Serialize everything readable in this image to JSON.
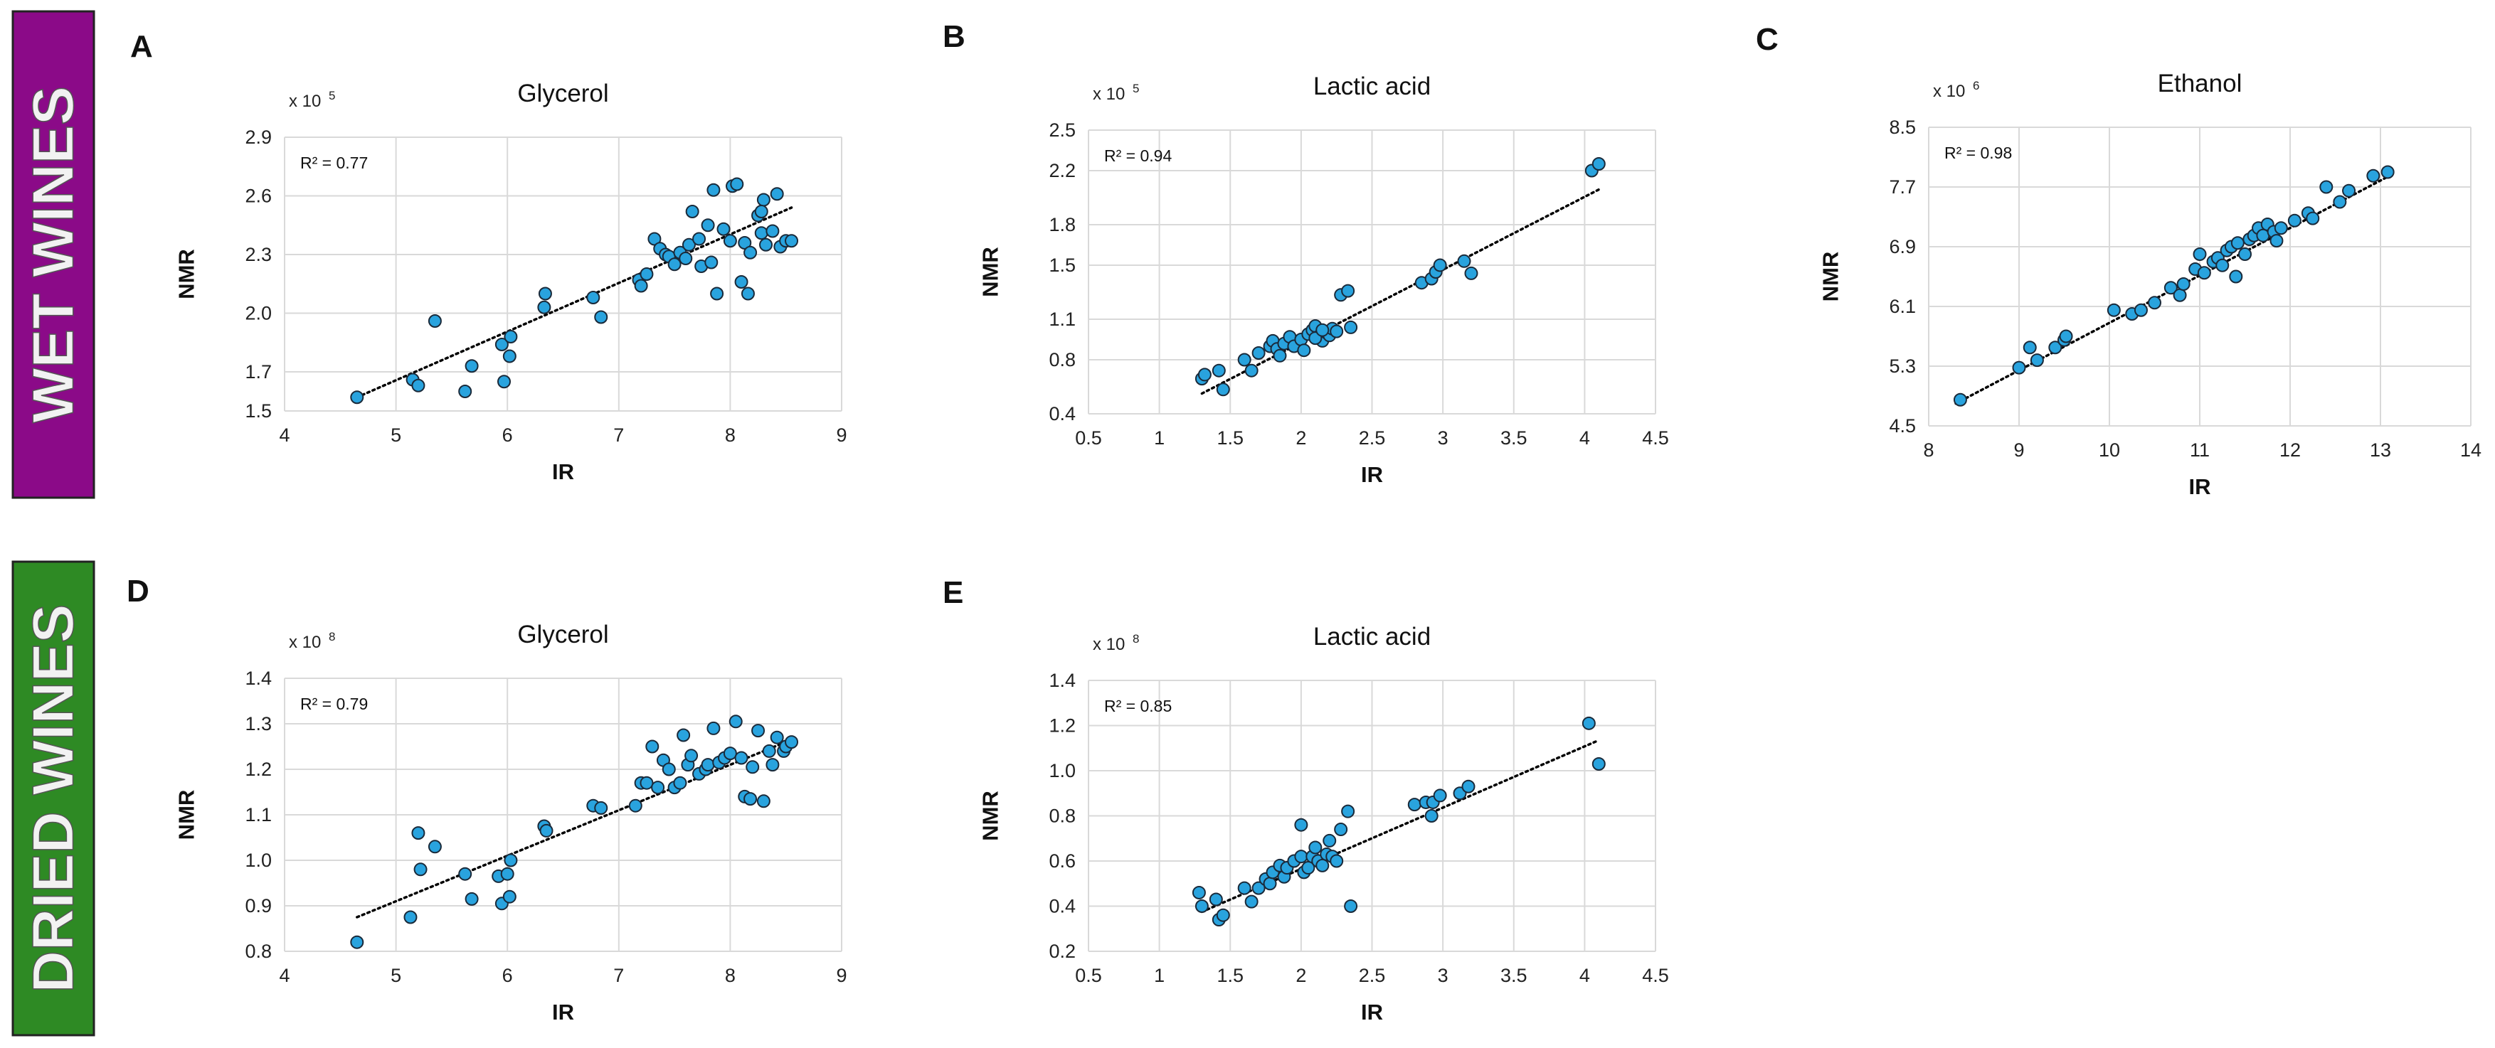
{
  "figure": {
    "bands": [
      {
        "label": "WET WINES",
        "color": "#8b0a88"
      },
      {
        "label": "DRIED WINES",
        "color": "#2e8a24"
      }
    ],
    "colors": {
      "point_fill": "#29a3de",
      "point_stroke": "#1a2a3a",
      "grid": "#d9d9d9",
      "trendline": "#000000",
      "band_text": "#f2f2f2",
      "band_border": "#222222"
    }
  },
  "chart_data": [
    {
      "panel_letter": "A",
      "type": "scatter",
      "title": "Glycerol",
      "xlabel": "IR",
      "ylabel": "NMR",
      "multiplier": "x 10",
      "multiplier_exp": "5",
      "r2_text": "R² = 0.77",
      "xlim": [
        4,
        9
      ],
      "ylim": [
        1.5,
        2.9
      ],
      "xticks": [
        4,
        5,
        6,
        7,
        8,
        9
      ],
      "yticks": [
        1.5,
        1.7,
        2.0,
        2.3,
        2.6,
        2.9
      ],
      "xtick_labels": [
        "4",
        "5",
        "6",
        "7",
        "8",
        "9"
      ],
      "ytick_labels": [
        "1.5",
        "1.7",
        "2.0",
        "2.3",
        "2.6",
        "2.9"
      ],
      "grid": true,
      "trendline": {
        "x": [
          4.65,
          8.55
        ],
        "y": [
          1.57,
          2.54
        ]
      },
      "points": [
        [
          4.65,
          1.57
        ],
        [
          5.15,
          1.66
        ],
        [
          5.2,
          1.63
        ],
        [
          5.35,
          1.96
        ],
        [
          5.62,
          1.6
        ],
        [
          5.68,
          1.73
        ],
        [
          5.95,
          1.84
        ],
        [
          5.97,
          1.65
        ],
        [
          6.02,
          1.78
        ],
        [
          6.03,
          1.88
        ],
        [
          6.33,
          2.03
        ],
        [
          6.34,
          2.1
        ],
        [
          6.77,
          2.08
        ],
        [
          6.84,
          1.98
        ],
        [
          7.18,
          2.17
        ],
        [
          7.2,
          2.14
        ],
        [
          7.25,
          2.2
        ],
        [
          7.32,
          2.38
        ],
        [
          7.37,
          2.33
        ],
        [
          7.42,
          2.3
        ],
        [
          7.45,
          2.29
        ],
        [
          7.5,
          2.25
        ],
        [
          7.55,
          2.31
        ],
        [
          7.6,
          2.28
        ],
        [
          7.63,
          2.35
        ],
        [
          7.66,
          2.52
        ],
        [
          7.72,
          2.38
        ],
        [
          7.74,
          2.24
        ],
        [
          7.8,
          2.45
        ],
        [
          7.83,
          2.26
        ],
        [
          7.85,
          2.63
        ],
        [
          7.88,
          2.1
        ],
        [
          7.94,
          2.43
        ],
        [
          8.0,
          2.37
        ],
        [
          8.02,
          2.65
        ],
        [
          8.06,
          2.66
        ],
        [
          8.1,
          2.16
        ],
        [
          8.13,
          2.36
        ],
        [
          8.16,
          2.1
        ],
        [
          8.18,
          2.31
        ],
        [
          8.25,
          2.5
        ],
        [
          8.28,
          2.41
        ],
        [
          8.3,
          2.58
        ],
        [
          8.32,
          2.35
        ],
        [
          8.38,
          2.42
        ],
        [
          8.42,
          2.61
        ],
        [
          8.45,
          2.34
        ],
        [
          8.5,
          2.37
        ],
        [
          8.55,
          2.37
        ],
        [
          8.28,
          2.52
        ]
      ]
    },
    {
      "panel_letter": "B",
      "type": "scatter",
      "title": "Lactic acid",
      "xlabel": "IR",
      "ylabel": "NMR",
      "multiplier": "x 10",
      "multiplier_exp": "5",
      "r2_text": "R² = 0.94",
      "xlim": [
        0.5,
        4.5
      ],
      "ylim": [
        0.4,
        2.5
      ],
      "xticks": [
        0.5,
        1,
        1.5,
        2,
        2.5,
        3,
        3.5,
        4,
        4.5
      ],
      "yticks": [
        0.4,
        0.8,
        1.1,
        1.5,
        1.8,
        2.2,
        2.5
      ],
      "xtick_labels": [
        "0.5",
        "1",
        "1.5",
        "2",
        "2.5",
        "3",
        "3.5",
        "4",
        "4.5"
      ],
      "ytick_labels": [
        "0.4",
        "0.8",
        "1.1",
        "1.5",
        "1.8",
        "2.2",
        "2.5"
      ],
      "grid": true,
      "trendline": {
        "x": [
          1.3,
          4.1
        ],
        "y": [
          0.55,
          2.06
        ]
      },
      "points": [
        [
          1.3,
          0.66
        ],
        [
          1.32,
          0.69
        ],
        [
          1.42,
          0.72
        ],
        [
          1.45,
          0.58
        ],
        [
          1.6,
          0.8
        ],
        [
          1.65,
          0.72
        ],
        [
          1.7,
          0.85
        ],
        [
          1.78,
          0.9
        ],
        [
          1.8,
          0.94
        ],
        [
          1.83,
          0.88
        ],
        [
          1.85,
          0.83
        ],
        [
          1.88,
          0.92
        ],
        [
          1.92,
          0.97
        ],
        [
          1.95,
          0.9
        ],
        [
          2.0,
          0.95
        ],
        [
          2.02,
          0.87
        ],
        [
          2.05,
          0.99
        ],
        [
          2.08,
          1.02
        ],
        [
          2.1,
          1.05
        ],
        [
          2.12,
          0.97
        ],
        [
          2.15,
          0.94
        ],
        [
          2.18,
          1.0
        ],
        [
          2.2,
          0.98
        ],
        [
          2.22,
          1.03
        ],
        [
          2.25,
          1.01
        ],
        [
          2.28,
          1.28
        ],
        [
          2.33,
          1.31
        ],
        [
          2.35,
          1.04
        ],
        [
          2.85,
          1.37
        ],
        [
          2.92,
          1.4
        ],
        [
          2.95,
          1.45
        ],
        [
          2.98,
          1.5
        ],
        [
          3.15,
          1.53
        ],
        [
          3.2,
          1.44
        ],
        [
          4.05,
          2.2
        ],
        [
          4.1,
          2.25
        ],
        [
          2.1,
          0.96
        ],
        [
          2.15,
          1.02
        ]
      ]
    },
    {
      "panel_letter": "C",
      "type": "scatter",
      "title": "Ethanol",
      "xlabel": "IR",
      "ylabel": "NMR",
      "multiplier": "x 10",
      "multiplier_exp": "6",
      "r2_text": "R² = 0.98",
      "xlim": [
        8,
        14
      ],
      "ylim": [
        4.5,
        8.5
      ],
      "xticks": [
        8,
        9,
        10,
        11,
        12,
        13,
        14
      ],
      "yticks": [
        4.5,
        5.3,
        6.1,
        6.9,
        7.7,
        8.5
      ],
      "xtick_labels": [
        "8",
        "9",
        "10",
        "11",
        "12",
        "13",
        "14"
      ],
      "ytick_labels": [
        "4.5",
        "5.3",
        "6.1",
        "6.9",
        "7.7",
        "8.5"
      ],
      "grid": true,
      "trendline": {
        "x": [
          8.3,
          13.1
        ],
        "y": [
          4.8,
          7.85
        ]
      },
      "points": [
        [
          8.35,
          4.85
        ],
        [
          9.0,
          5.28
        ],
        [
          9.12,
          5.55
        ],
        [
          9.2,
          5.38
        ],
        [
          9.4,
          5.55
        ],
        [
          9.5,
          5.65
        ],
        [
          9.52,
          5.7
        ],
        [
          10.05,
          6.05
        ],
        [
          10.25,
          6.0
        ],
        [
          10.35,
          6.05
        ],
        [
          10.5,
          6.15
        ],
        [
          10.68,
          6.35
        ],
        [
          10.78,
          6.25
        ],
        [
          10.82,
          6.4
        ],
        [
          10.95,
          6.6
        ],
        [
          11.0,
          6.8
        ],
        [
          11.05,
          6.55
        ],
        [
          11.15,
          6.7
        ],
        [
          11.2,
          6.75
        ],
        [
          11.25,
          6.65
        ],
        [
          11.3,
          6.85
        ],
        [
          11.35,
          6.9
        ],
        [
          11.4,
          6.5
        ],
        [
          11.42,
          6.95
        ],
        [
          11.5,
          6.8
        ],
        [
          11.55,
          7.0
        ],
        [
          11.6,
          7.05
        ],
        [
          11.65,
          7.15
        ],
        [
          11.7,
          7.05
        ],
        [
          11.75,
          7.2
        ],
        [
          11.82,
          7.1
        ],
        [
          11.85,
          6.98
        ],
        [
          11.9,
          7.15
        ],
        [
          12.05,
          7.25
        ],
        [
          12.2,
          7.35
        ],
        [
          12.25,
          7.28
        ],
        [
          12.4,
          7.7
        ],
        [
          12.55,
          7.5
        ],
        [
          12.65,
          7.65
        ],
        [
          12.92,
          7.85
        ],
        [
          13.08,
          7.9
        ]
      ]
    },
    {
      "panel_letter": "D",
      "type": "scatter",
      "title": "Glycerol",
      "xlabel": "IR",
      "ylabel": "NMR",
      "multiplier": "x 10",
      "multiplier_exp": "8",
      "r2_text": "R² = 0.79",
      "xlim": [
        4,
        9
      ],
      "ylim": [
        0.8,
        1.4
      ],
      "xticks": [
        4,
        5,
        6,
        7,
        8,
        9
      ],
      "yticks": [
        0.8,
        0.9,
        1.0,
        1.1,
        1.2,
        1.3,
        1.4
      ],
      "xtick_labels": [
        "4",
        "5",
        "6",
        "7",
        "8",
        "9"
      ],
      "ytick_labels": [
        "0.8",
        "0.9",
        "1.0",
        "1.1",
        "1.2",
        "1.3",
        "1.4"
      ],
      "grid": true,
      "trendline": {
        "x": [
          4.65,
          8.55
        ],
        "y": [
          0.875,
          1.265
        ]
      },
      "points": [
        [
          4.65,
          0.82
        ],
        [
          5.13,
          0.875
        ],
        [
          5.2,
          1.06
        ],
        [
          5.22,
          0.98
        ],
        [
          5.35,
          1.03
        ],
        [
          5.62,
          0.97
        ],
        [
          5.68,
          0.915
        ],
        [
          5.92,
          0.965
        ],
        [
          5.95,
          0.905
        ],
        [
          6.0,
          0.97
        ],
        [
          6.03,
          1.0
        ],
        [
          6.02,
          0.92
        ],
        [
          6.33,
          1.075
        ],
        [
          6.35,
          1.065
        ],
        [
          6.77,
          1.12
        ],
        [
          6.84,
          1.115
        ],
        [
          7.15,
          1.12
        ],
        [
          7.2,
          1.17
        ],
        [
          7.25,
          1.17
        ],
        [
          7.3,
          1.25
        ],
        [
          7.35,
          1.16
        ],
        [
          7.4,
          1.22
        ],
        [
          7.45,
          1.2
        ],
        [
          7.5,
          1.16
        ],
        [
          7.55,
          1.17
        ],
        [
          7.58,
          1.275
        ],
        [
          7.62,
          1.21
        ],
        [
          7.65,
          1.23
        ],
        [
          7.72,
          1.19
        ],
        [
          7.78,
          1.2
        ],
        [
          7.8,
          1.21
        ],
        [
          7.85,
          1.29
        ],
        [
          7.9,
          1.215
        ],
        [
          7.95,
          1.225
        ],
        [
          8.0,
          1.235
        ],
        [
          8.05,
          1.305
        ],
        [
          8.1,
          1.225
        ],
        [
          8.13,
          1.14
        ],
        [
          8.18,
          1.135
        ],
        [
          8.2,
          1.205
        ],
        [
          8.25,
          1.285
        ],
        [
          8.3,
          1.13
        ],
        [
          8.35,
          1.24
        ],
        [
          8.38,
          1.21
        ],
        [
          8.42,
          1.27
        ],
        [
          8.48,
          1.24
        ],
        [
          8.5,
          1.25
        ],
        [
          8.55,
          1.26
        ]
      ]
    },
    {
      "panel_letter": "E",
      "type": "scatter",
      "title": "Lactic acid",
      "xlabel": "IR",
      "ylabel": "NMR",
      "multiplier": "x 10",
      "multiplier_exp": "8",
      "r2_text": "R² = 0.85",
      "xlim": [
        0.5,
        4.5
      ],
      "ylim": [
        0.2,
        1.4
      ],
      "xticks": [
        0.5,
        1,
        1.5,
        2,
        2.5,
        3,
        3.5,
        4,
        4.5
      ],
      "yticks": [
        0.2,
        0.4,
        0.6,
        0.8,
        1.0,
        1.2,
        1.4
      ],
      "xtick_labels": [
        "0.5",
        "1",
        "1.5",
        "2",
        "2.5",
        "3",
        "3.5",
        "4",
        "4.5"
      ],
      "ytick_labels": [
        "0.2",
        "0.4",
        "0.6",
        "0.8",
        "1.0",
        "1.2",
        "1.4"
      ],
      "grid": true,
      "trendline": {
        "x": [
          1.3,
          4.1
        ],
        "y": [
          0.375,
          1.135
        ]
      },
      "points": [
        [
          1.28,
          0.46
        ],
        [
          1.3,
          0.4
        ],
        [
          1.4,
          0.43
        ],
        [
          1.42,
          0.34
        ],
        [
          1.45,
          0.36
        ],
        [
          1.6,
          0.48
        ],
        [
          1.65,
          0.42
        ],
        [
          1.7,
          0.48
        ],
        [
          1.75,
          0.52
        ],
        [
          1.78,
          0.5
        ],
        [
          1.8,
          0.55
        ],
        [
          1.85,
          0.58
        ],
        [
          1.88,
          0.53
        ],
        [
          1.9,
          0.57
        ],
        [
          1.95,
          0.6
        ],
        [
          2.0,
          0.62
        ],
        [
          2.0,
          0.76
        ],
        [
          2.02,
          0.55
        ],
        [
          2.05,
          0.57
        ],
        [
          2.08,
          0.62
        ],
        [
          2.1,
          0.66
        ],
        [
          2.12,
          0.6
        ],
        [
          2.15,
          0.58
        ],
        [
          2.18,
          0.63
        ],
        [
          2.2,
          0.69
        ],
        [
          2.22,
          0.62
        ],
        [
          2.25,
          0.6
        ],
        [
          2.28,
          0.74
        ],
        [
          2.33,
          0.82
        ],
        [
          2.35,
          0.4
        ],
        [
          2.8,
          0.85
        ],
        [
          2.88,
          0.86
        ],
        [
          2.92,
          0.8
        ],
        [
          2.93,
          0.86
        ],
        [
          2.98,
          0.89
        ],
        [
          3.12,
          0.9
        ],
        [
          3.18,
          0.93
        ],
        [
          4.03,
          1.21
        ],
        [
          4.1,
          1.03
        ]
      ]
    }
  ]
}
